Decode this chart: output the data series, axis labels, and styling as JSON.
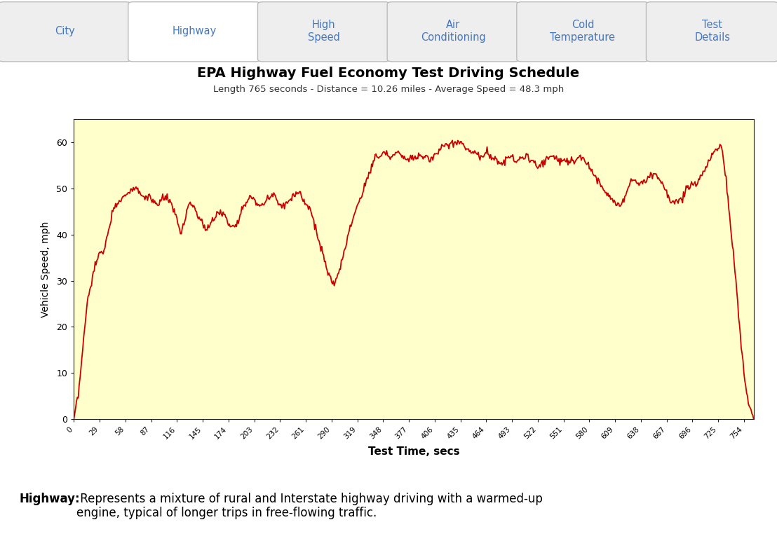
{
  "title": "EPA Highway Fuel Economy Test Driving Schedule",
  "subtitle": "Length 765 seconds - Distance = 10.26 miles - Average Speed = 48.3 mph",
  "xlabel": "Test Time, secs",
  "ylabel": "Vehicle Speed, mph",
  "plot_bg_color": "#FFFFCC",
  "outer_bg_color": "#99BBDD",
  "line_color": "#CC0000",
  "tab_labels": [
    "City",
    "Highway",
    "High\nSpeed",
    "Air\nConditioning",
    "Cold\nTemperature",
    "Test\nDetails"
  ],
  "tab_text_color": "#4477BB",
  "footer_bold": "Highway:",
  "footer_text": " Represents a mixture of rural and Interstate highway driving with a warmed-up\nengine, typical of longer trips in free-flowing traffic.",
  "xlim": [
    0,
    765
  ],
  "ylim": [
    0,
    65
  ],
  "xticks": [
    0,
    29,
    58,
    87,
    116,
    145,
    174,
    203,
    232,
    261,
    290,
    319,
    348,
    377,
    406,
    435,
    464,
    493,
    522,
    551,
    580,
    609,
    638,
    667,
    696,
    725,
    754
  ],
  "yticks": [
    0,
    10,
    20,
    30,
    40,
    50,
    60
  ],
  "key_points": [
    [
      0,
      0
    ],
    [
      5,
      5
    ],
    [
      10,
      15
    ],
    [
      15,
      25
    ],
    [
      20,
      30
    ],
    [
      25,
      34
    ],
    [
      30,
      36
    ],
    [
      35,
      37
    ],
    [
      40,
      42
    ],
    [
      45,
      46
    ],
    [
      50,
      47
    ],
    [
      55,
      48
    ],
    [
      60,
      49
    ],
    [
      65,
      50
    ],
    [
      70,
      50
    ],
    [
      75,
      49
    ],
    [
      80,
      48
    ],
    [
      85,
      48
    ],
    [
      90,
      47
    ],
    [
      95,
      46
    ],
    [
      100,
      48
    ],
    [
      105,
      48
    ],
    [
      110,
      46
    ],
    [
      115,
      44
    ],
    [
      120,
      40
    ],
    [
      125,
      43
    ],
    [
      130,
      47
    ],
    [
      135,
      46
    ],
    [
      140,
      44
    ],
    [
      145,
      42
    ],
    [
      150,
      41
    ],
    [
      155,
      43
    ],
    [
      160,
      44
    ],
    [
      165,
      45
    ],
    [
      170,
      44
    ],
    [
      175,
      42
    ],
    [
      180,
      42
    ],
    [
      185,
      43
    ],
    [
      190,
      46
    ],
    [
      195,
      47
    ],
    [
      200,
      48
    ],
    [
      205,
      47
    ],
    [
      210,
      46
    ],
    [
      215,
      47
    ],
    [
      220,
      48
    ],
    [
      225,
      49
    ],
    [
      230,
      47
    ],
    [
      235,
      46
    ],
    [
      240,
      47
    ],
    [
      245,
      48
    ],
    [
      250,
      49
    ],
    [
      255,
      49
    ],
    [
      260,
      47
    ],
    [
      265,
      46
    ],
    [
      270,
      43
    ],
    [
      275,
      39
    ],
    [
      280,
      36
    ],
    [
      285,
      32
    ],
    [
      290,
      30
    ],
    [
      292,
      29
    ],
    [
      295,
      30
    ],
    [
      300,
      33
    ],
    [
      305,
      37
    ],
    [
      310,
      41
    ],
    [
      315,
      44
    ],
    [
      320,
      47
    ],
    [
      325,
      49
    ],
    [
      330,
      52
    ],
    [
      335,
      55
    ],
    [
      340,
      57
    ],
    [
      345,
      57
    ],
    [
      350,
      58
    ],
    [
      355,
      57
    ],
    [
      360,
      57
    ],
    [
      365,
      58
    ],
    [
      370,
      57
    ],
    [
      375,
      56
    ],
    [
      380,
      57
    ],
    [
      385,
      57
    ],
    [
      390,
      57
    ],
    [
      395,
      57
    ],
    [
      400,
      56
    ],
    [
      405,
      57
    ],
    [
      410,
      58
    ],
    [
      415,
      59
    ],
    [
      420,
      59
    ],
    [
      425,
      60
    ],
    [
      430,
      60
    ],
    [
      435,
      60
    ],
    [
      440,
      59
    ],
    [
      445,
      58
    ],
    [
      450,
      58
    ],
    [
      455,
      57
    ],
    [
      460,
      57
    ],
    [
      465,
      58
    ],
    [
      470,
      57
    ],
    [
      475,
      56
    ],
    [
      480,
      55
    ],
    [
      485,
      56
    ],
    [
      490,
      57
    ],
    [
      495,
      56
    ],
    [
      500,
      56
    ],
    [
      505,
      57
    ],
    [
      510,
      57
    ],
    [
      515,
      56
    ],
    [
      520,
      55
    ],
    [
      525,
      55
    ],
    [
      530,
      56
    ],
    [
      535,
      57
    ],
    [
      540,
      57
    ],
    [
      545,
      56
    ],
    [
      550,
      56
    ],
    [
      555,
      56
    ],
    [
      560,
      56
    ],
    [
      565,
      56
    ],
    [
      570,
      57
    ],
    [
      575,
      56
    ],
    [
      580,
      55
    ],
    [
      585,
      53
    ],
    [
      590,
      52
    ],
    [
      595,
      50
    ],
    [
      600,
      49
    ],
    [
      605,
      48
    ],
    [
      610,
      47
    ],
    [
      615,
      46
    ],
    [
      620,
      48
    ],
    [
      625,
      51
    ],
    [
      630,
      52
    ],
    [
      635,
      51
    ],
    [
      640,
      51
    ],
    [
      645,
      52
    ],
    [
      650,
      53
    ],
    [
      655,
      53
    ],
    [
      660,
      52
    ],
    [
      665,
      50
    ],
    [
      670,
      48
    ],
    [
      675,
      47
    ],
    [
      680,
      47
    ],
    [
      685,
      48
    ],
    [
      690,
      50
    ],
    [
      695,
      51
    ],
    [
      700,
      51
    ],
    [
      705,
      52
    ],
    [
      710,
      54
    ],
    [
      715,
      56
    ],
    [
      720,
      58
    ],
    [
      725,
      59
    ],
    [
      728,
      59
    ],
    [
      730,
      58
    ],
    [
      735,
      50
    ],
    [
      740,
      40
    ],
    [
      745,
      30
    ],
    [
      750,
      18
    ],
    [
      755,
      8
    ],
    [
      760,
      3
    ],
    [
      765,
      0
    ]
  ]
}
